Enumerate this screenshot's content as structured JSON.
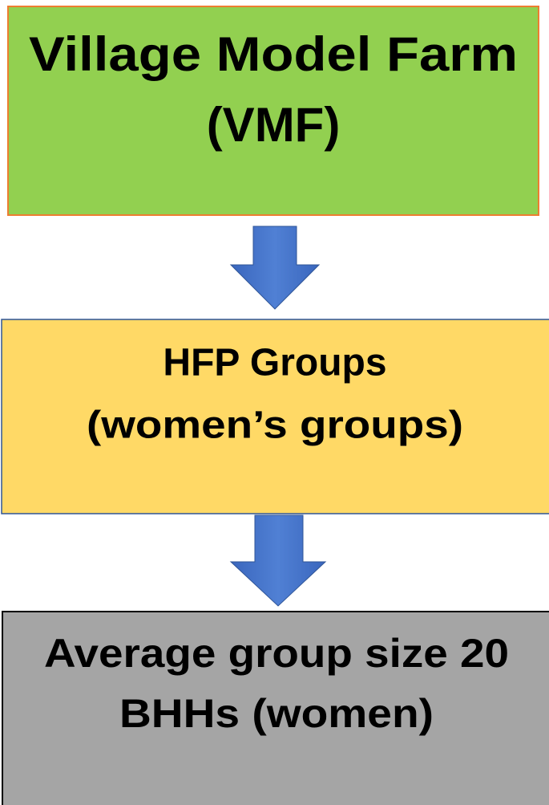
{
  "nodes": [
    {
      "lines": [
        "Village Model  Farm",
        "(VMF)"
      ]
    },
    {
      "lines": [
        "HFP Groups",
        "(women’s groups)"
      ]
    },
    {
      "lines": [
        "Average group size 20",
        "BHHs (women)"
      ]
    }
  ]
}
